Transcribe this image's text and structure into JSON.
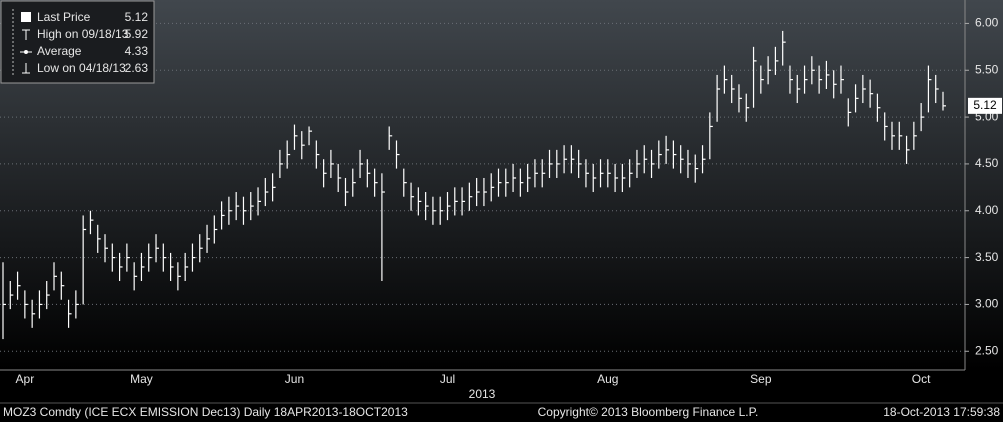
{
  "chart_data": {
    "type": "ohlc",
    "legend_items": [
      {
        "label": "High on 09/18/13",
        "value": 5.92
      },
      {
        "label": "Average",
        "value": 4.33
      },
      {
        "label": "Low on 04/18/13",
        "value": 2.63
      }
    ],
    "axis_year": "2013",
    "footer_left": "MOZ3 Comdty (ICE ECX EMISSION  Dec13)  Daily 18APR2013-18OCT2013",
    "footer_center": "Copyright© 2013 Bloomberg Finance L.P.",
    "footer_right": "18-Oct-2013 17:59:38",
    "categories": [
      null,
      null,
      null,
      "Apr",
      null,
      null,
      null,
      null,
      null,
      null,
      null,
      null,
      null,
      null,
      null,
      null,
      null,
      null,
      null,
      "May",
      null,
      null,
      null,
      null,
      null,
      null,
      null,
      null,
      null,
      null,
      null,
      null,
      null,
      null,
      null,
      null,
      null,
      null,
      null,
      null,
      "Jun",
      null,
      null,
      null,
      null,
      null,
      null,
      null,
      null,
      null,
      null,
      null,
      null,
      null,
      null,
      null,
      null,
      null,
      null,
      null,
      null,
      "Jul",
      null,
      null,
      null,
      null,
      null,
      null,
      null,
      null,
      null,
      null,
      null,
      null,
      null,
      null,
      null,
      null,
      null,
      null,
      null,
      null,
      null,
      "Aug",
      null,
      null,
      null,
      null,
      null,
      null,
      null,
      null,
      null,
      null,
      null,
      null,
      null,
      null,
      null,
      null,
      null,
      null,
      null,
      null,
      "Sep",
      null,
      null,
      null,
      null,
      null,
      null,
      null,
      null,
      null,
      null,
      null,
      null,
      null,
      null,
      null,
      null,
      null,
      null,
      null,
      null,
      null,
      "Oct",
      null,
      null,
      null
    ],
    "series": [
      {
        "name": "Last Price",
        "color": "#ffffff",
        "high": [
          3.45,
          3.25,
          3.35,
          3.15,
          3.05,
          3.15,
          3.25,
          3.45,
          3.35,
          3.05,
          3.15,
          3.95,
          4.0,
          3.85,
          3.75,
          3.65,
          3.55,
          3.65,
          3.45,
          3.55,
          3.65,
          3.75,
          3.65,
          3.55,
          3.45,
          3.55,
          3.65,
          3.75,
          3.85,
          3.95,
          4.1,
          4.15,
          4.2,
          4.15,
          4.2,
          4.25,
          4.35,
          4.4,
          4.65,
          4.75,
          4.92,
          4.85,
          4.9,
          4.75,
          4.55,
          4.65,
          4.5,
          4.35,
          4.45,
          4.65,
          4.55,
          4.45,
          4.4,
          4.9,
          4.75,
          4.45,
          4.3,
          4.25,
          4.2,
          4.15,
          4.15,
          4.2,
          4.25,
          4.25,
          4.3,
          4.35,
          4.35,
          4.4,
          4.45,
          4.45,
          4.5,
          4.45,
          4.5,
          4.55,
          4.55,
          4.65,
          4.65,
          4.7,
          4.7,
          4.65,
          4.55,
          4.5,
          4.55,
          4.55,
          4.5,
          4.5,
          4.55,
          4.65,
          4.7,
          4.65,
          4.75,
          4.8,
          4.75,
          4.7,
          4.65,
          4.6,
          4.7,
          5.05,
          5.45,
          5.55,
          5.45,
          5.35,
          5.25,
          5.75,
          5.55,
          5.65,
          5.75,
          5.92,
          5.55,
          5.45,
          5.55,
          5.65,
          5.55,
          5.6,
          5.5,
          5.55,
          5.2,
          5.35,
          5.45,
          5.4,
          5.25,
          5.05,
          4.95,
          4.95,
          4.8,
          4.95,
          5.15,
          5.55,
          5.45,
          5.27
        ],
        "low": [
          2.63,
          2.95,
          3.05,
          2.85,
          2.75,
          2.85,
          2.95,
          3.15,
          3.05,
          2.75,
          2.85,
          3.0,
          3.75,
          3.55,
          3.45,
          3.35,
          3.25,
          3.35,
          3.15,
          3.25,
          3.35,
          3.45,
          3.35,
          3.25,
          3.15,
          3.25,
          3.35,
          3.45,
          3.55,
          3.65,
          3.8,
          3.85,
          3.9,
          3.85,
          3.9,
          3.95,
          4.05,
          4.1,
          4.35,
          4.45,
          4.65,
          4.55,
          4.7,
          4.45,
          4.25,
          4.35,
          4.2,
          4.05,
          4.15,
          4.35,
          4.25,
          4.15,
          3.25,
          4.65,
          4.45,
          4.15,
          4.0,
          3.95,
          3.9,
          3.85,
          3.85,
          3.9,
          3.95,
          3.95,
          4.0,
          4.05,
          4.05,
          4.1,
          4.15,
          4.15,
          4.2,
          4.15,
          4.2,
          4.25,
          4.25,
          4.35,
          4.35,
          4.4,
          4.4,
          4.35,
          4.25,
          4.2,
          4.25,
          4.25,
          4.2,
          4.2,
          4.25,
          4.35,
          4.4,
          4.35,
          4.45,
          4.5,
          4.45,
          4.4,
          4.35,
          4.3,
          4.4,
          4.55,
          4.95,
          5.25,
          5.15,
          5.05,
          4.95,
          5.1,
          5.25,
          5.35,
          5.45,
          5.55,
          5.25,
          5.15,
          5.25,
          5.35,
          5.25,
          5.3,
          5.2,
          5.25,
          4.9,
          5.05,
          5.15,
          5.1,
          4.95,
          4.75,
          4.65,
          4.65,
          4.5,
          4.65,
          4.85,
          5.05,
          5.15,
          5.07
        ],
        "close": [
          3.0,
          3.1,
          3.2,
          3.0,
          2.9,
          3.0,
          3.1,
          3.3,
          3.2,
          2.9,
          3.0,
          3.8,
          3.9,
          3.7,
          3.6,
          3.5,
          3.4,
          3.5,
          3.3,
          3.4,
          3.5,
          3.6,
          3.5,
          3.4,
          3.3,
          3.4,
          3.5,
          3.6,
          3.7,
          3.8,
          3.95,
          4.0,
          4.05,
          4.0,
          4.05,
          4.1,
          4.2,
          4.25,
          4.5,
          4.6,
          4.8,
          4.7,
          4.85,
          4.6,
          4.4,
          4.5,
          4.35,
          4.2,
          4.3,
          4.5,
          4.4,
          4.3,
          4.2,
          4.8,
          4.6,
          4.3,
          4.15,
          4.1,
          4.05,
          4.0,
          4.0,
          4.05,
          4.1,
          4.1,
          4.15,
          4.2,
          4.2,
          4.25,
          4.3,
          4.3,
          4.35,
          4.3,
          4.35,
          4.4,
          4.4,
          4.5,
          4.5,
          4.55,
          4.55,
          4.5,
          4.4,
          4.35,
          4.4,
          4.4,
          4.35,
          4.35,
          4.4,
          4.5,
          4.55,
          4.5,
          4.6,
          4.65,
          4.6,
          4.55,
          4.5,
          4.45,
          4.55,
          4.9,
          5.3,
          5.4,
          5.3,
          5.2,
          5.1,
          5.6,
          5.4,
          5.5,
          5.6,
          5.8,
          5.4,
          5.3,
          5.4,
          5.5,
          5.4,
          5.45,
          5.35,
          5.4,
          5.05,
          5.2,
          5.3,
          5.25,
          5.1,
          4.9,
          4.8,
          4.8,
          4.65,
          4.8,
          5.0,
          5.4,
          5.3,
          5.12
        ]
      }
    ],
    "ylim": [
      2.3,
      6.25
    ],
    "yticks": [
      {
        "value": 2.5,
        "label": "2.50"
      },
      {
        "value": 3,
        "label": "3.00"
      },
      {
        "value": 3.5,
        "label": "3.50"
      },
      {
        "value": 4,
        "label": "4.00"
      },
      {
        "value": 4.5,
        "label": "4.50"
      },
      {
        "value": 5,
        "label": "5.00"
      },
      {
        "value": 5.5,
        "label": "5.50"
      },
      {
        "value": 6,
        "label": "6.00"
      }
    ],
    "grid": true
  }
}
